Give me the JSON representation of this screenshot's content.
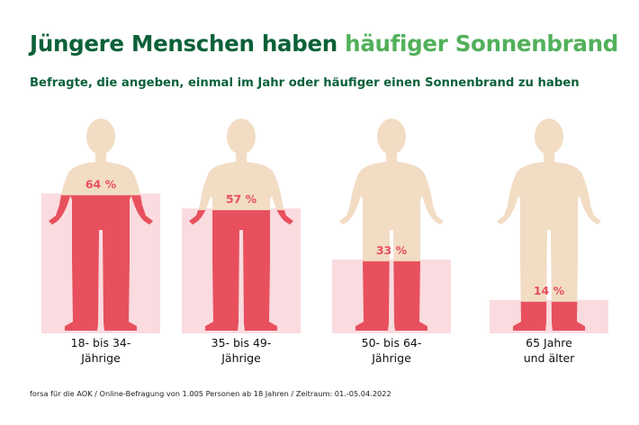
{
  "title": {
    "part1": "Jüngere Menschen haben ",
    "part2": "häufiger Sonnenbrand"
  },
  "subtitle": "Befragte, die angeben, einmal im Jahr oder häufiger einen Sonnenbrand zu haben",
  "source": "forsa für die AOK / Online-Befragung von 1.005 Personen ab 18 Jahren / Zeitraum: 01.-05.04.2022",
  "colors": {
    "title_dark": "#0b6139",
    "title_accent": "#52b05a",
    "figure": "#f2dcc4",
    "sunburn": "#e8505e",
    "sunburn_glow": "#f8ccd1",
    "value_text": "#e8505e"
  },
  "chart_data": {
    "type": "bar",
    "unit": "%",
    "categories": [
      "18- bis 34-\nJährige",
      "35- bis 49-\nJährige",
      "50- bis 64-\nJährige",
      "65 Jahre\nund älter"
    ],
    "values": [
      64,
      57,
      33,
      14
    ],
    "value_labels": [
      "64 %",
      "57 %",
      "33 %",
      "14 %"
    ],
    "ylim": [
      0,
      100
    ]
  }
}
